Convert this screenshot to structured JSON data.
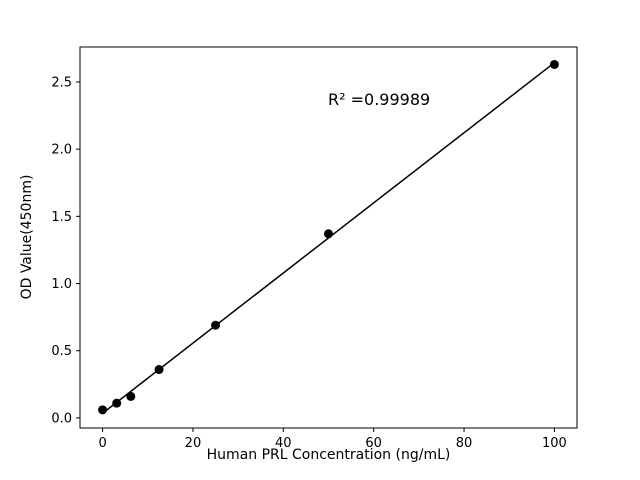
{
  "chart_data": {
    "type": "scatter",
    "title": "",
    "xlabel": "Human PRL Concentration (ng/mL)",
    "ylabel": "OD Value(450nm)",
    "annotation": "R² =0.99989",
    "x": [
      0,
      3.125,
      6.25,
      12.5,
      25,
      50,
      100
    ],
    "y": [
      0.06,
      0.11,
      0.16,
      0.36,
      0.69,
      1.37,
      2.63
    ],
    "xlim": [
      -5,
      105
    ],
    "ylim": [
      -0.075,
      2.76
    ],
    "xticks": [
      0,
      20,
      40,
      60,
      80,
      100
    ],
    "yticks": [
      0.0,
      0.5,
      1.0,
      1.5,
      2.0,
      2.5
    ],
    "marker_color": "#000000",
    "line_color": "#000000",
    "background_color": "#ffffff",
    "fit": "linear",
    "legend": null,
    "grid": false
  }
}
